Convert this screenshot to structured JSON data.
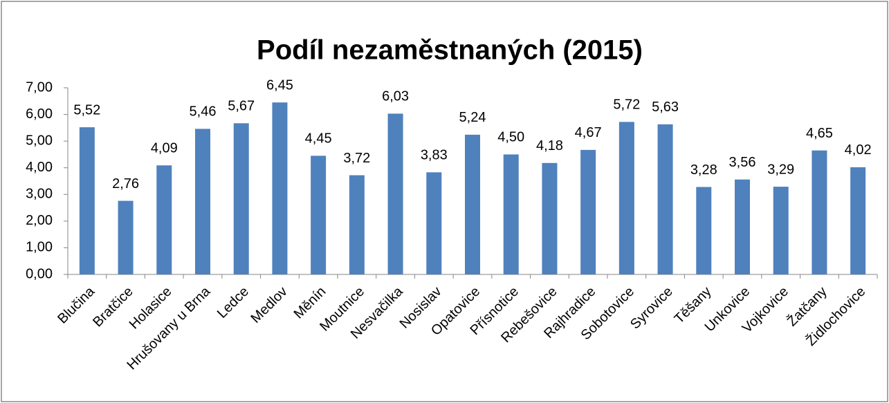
{
  "chart_data": {
    "type": "bar",
    "title": "Podíl nezaměstnaných (2015)",
    "categories": [
      "Blučina",
      "Bratčice",
      "Holasice",
      "Hrušovany u Brna",
      "Ledce",
      "Medlov",
      "Měnín",
      "Moutnice",
      "Nesvačilka",
      "Nosislav",
      "Opatovice",
      "Přísnotice",
      "Rebešovice",
      "Rajhradice",
      "Sobotovice",
      "Syrovice",
      "Těšany",
      "Unkovice",
      "Vojkovice",
      "Žatčany",
      "Židlochovice"
    ],
    "values": [
      5.52,
      2.76,
      4.09,
      5.46,
      5.67,
      6.45,
      4.45,
      3.72,
      6.03,
      3.83,
      5.24,
      4.5,
      4.18,
      4.67,
      5.72,
      5.63,
      3.28,
      3.56,
      3.29,
      4.65,
      4.02
    ],
    "value_labels": [
      "5,52",
      "2,76",
      "4,09",
      "5,46",
      "5,67",
      "6,45",
      "4,45",
      "3,72",
      "6,03",
      "3,83",
      "5,24",
      "4,50",
      "4,18",
      "4,67",
      "5,72",
      "5,63",
      "3,28",
      "3,56",
      "3,29",
      "4,65",
      "4,02"
    ],
    "color": "#4f81bd",
    "ylim": [
      0,
      7
    ],
    "yticks": [
      {
        "value": 0,
        "label": "0,00"
      },
      {
        "value": 1,
        "label": "1,00"
      },
      {
        "value": 2,
        "label": "2,00"
      },
      {
        "value": 3,
        "label": "3,00"
      },
      {
        "value": 4,
        "label": "4,00"
      },
      {
        "value": 5,
        "label": "5,00"
      },
      {
        "value": 6,
        "label": "6,00"
      },
      {
        "value": 7,
        "label": "7,00"
      }
    ],
    "grid": false
  }
}
